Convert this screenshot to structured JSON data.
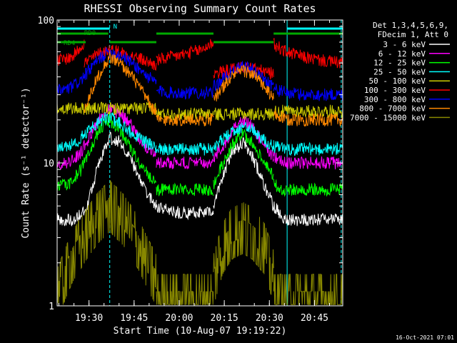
{
  "chart_data": {
    "type": "line",
    "title": "RHESSI Observing Summary Count Rates",
    "xlabel": "Start Time (10-Aug-07 19:19:22)",
    "ylabel": "Count Rate (s⁻¹ detector⁻¹)",
    "y_scale": "log",
    "ylim": [
      1,
      100
    ],
    "xlim_minutes": [
      0,
      95
    ],
    "x_ticks": [
      {
        "minute": 10.6,
        "label": "19:30"
      },
      {
        "minute": 25.6,
        "label": "19:45"
      },
      {
        "minute": 40.6,
        "label": "20:00"
      },
      {
        "minute": 55.6,
        "label": "20:15"
      },
      {
        "minute": 70.6,
        "label": "20:30"
      },
      {
        "minute": 85.6,
        "label": "20:45"
      }
    ],
    "y_ticks": [
      {
        "value": 1,
        "label": "1"
      },
      {
        "value": 10,
        "label": "10"
      },
      {
        "value": 100,
        "label": "100"
      }
    ],
    "legend_header": [
      "Det 1,3,4,5,6,9,",
      "FDecim 1, Att 0"
    ],
    "legend_position": "right",
    "timestamp": "16-Oct-2021 07:01",
    "flags": [
      {
        "label": "N",
        "color": "#00ffff",
        "segments": [
          [
            0,
            17.5
          ],
          [
            76.5,
            95
          ]
        ],
        "y": 40
      },
      {
        "label": "RD0",
        "color": "#00aa00",
        "segments": [
          [
            0,
            17
          ],
          [
            33,
            52
          ],
          [
            72,
            95
          ]
        ],
        "y": 47
      },
      {
        "label": "RD4",
        "color": "#00aa00",
        "segments": [
          [
            0,
            9.5
          ],
          [
            17.5,
            33
          ],
          [
            52,
            72
          ]
        ],
        "y": 59
      }
    ],
    "vertical_lines": [
      {
        "minute": 0,
        "color": "#00ffff",
        "style": "solid"
      },
      {
        "minute": 17.5,
        "color": "#00ffff",
        "style": "dashed"
      },
      {
        "minute": 76.5,
        "color": "#00ffff",
        "style": "solid"
      },
      {
        "minute": 94.5,
        "color": "#00ffff",
        "style": "dashed"
      }
    ],
    "series": [
      {
        "name": "3 - 6 keV",
        "color": "#ffffff",
        "segments": [
          {
            "x": [
              0,
              6,
              10,
              14,
              17.5,
              21,
              25,
              30,
              33
            ],
            "y": [
              4,
              4,
              5,
              10,
              15,
              14,
              10,
              6,
              5
            ]
          },
          {
            "x": [
              33,
              38,
              43,
              48,
              52
            ],
            "y": [
              5,
              4.5,
              4.5,
              4.5,
              4.5
            ]
          },
          {
            "x": [
              52,
              55,
              58,
              62,
              65,
              69,
              72
            ],
            "y": [
              5,
              8,
              12,
              14,
              11,
              7,
              5
            ]
          },
          {
            "x": [
              72,
              76,
              82,
              88,
              95
            ],
            "y": [
              5,
              4,
              4,
              4,
              4
            ]
          }
        ]
      },
      {
        "name": "6 - 12 keV",
        "color": "#ff00ff",
        "segments": [
          {
            "x": [
              0,
              4,
              8,
              12,
              15,
              17.5,
              21,
              25,
              29,
              33
            ],
            "y": [
              10,
              10,
              12,
              17,
              22,
              24,
              22,
              18,
              13,
              11
            ]
          },
          {
            "x": [
              33,
              38,
              43,
              48,
              52
            ],
            "y": [
              10,
              10,
              10,
              10,
              10
            ]
          },
          {
            "x": [
              52,
              56,
              59,
              62,
              65,
              68,
              72
            ],
            "y": [
              11,
              14,
              18,
              20,
              18,
              14,
              11
            ]
          },
          {
            "x": [
              72,
              76,
              82,
              88,
              95
            ],
            "y": [
              11,
              10,
              10,
              10,
              10
            ]
          }
        ]
      },
      {
        "name": "12 - 25 keV",
        "color": "#00ff00",
        "segments": [
          {
            "x": [
              0,
              4,
              8,
              12,
              15,
              17.5,
              21,
              25,
              29,
              33
            ],
            "y": [
              7,
              7,
              9,
              14,
              18,
              20,
              17,
              12,
              9,
              7
            ]
          },
          {
            "x": [
              33,
              38,
              43,
              48,
              52
            ],
            "y": [
              6.5,
              6.5,
              6.5,
              6.5,
              6.5
            ]
          },
          {
            "x": [
              52,
              56,
              59,
              62,
              65,
              68,
              72
            ],
            "y": [
              7,
              11,
              14,
              16,
              14,
              11,
              8
            ]
          },
          {
            "x": [
              72,
              76,
              82,
              88,
              95
            ],
            "y": [
              7,
              6.5,
              6.5,
              6.5,
              6.5
            ]
          }
        ]
      },
      {
        "name": "25 - 50 keV",
        "color": "#00ffff",
        "segments": [
          {
            "x": [
              0,
              4,
              8,
              12,
              15,
              17.5,
              21,
              25,
              29,
              33
            ],
            "y": [
              13,
              13,
              15,
              18,
              20,
              21,
              19,
              16,
              14,
              13
            ]
          },
          {
            "x": [
              33,
              38,
              43,
              48,
              52
            ],
            "y": [
              12.5,
              12.5,
              12.5,
              12.5,
              12.5
            ]
          },
          {
            "x": [
              52,
              56,
              59,
              62,
              65,
              68,
              72
            ],
            "y": [
              13,
              15,
              17,
              18,
              17,
              15,
              13
            ]
          },
          {
            "x": [
              72,
              76,
              82,
              88,
              95
            ],
            "y": [
              13,
              12.5,
              12.5,
              12.5,
              12.5
            ]
          }
        ]
      },
      {
        "name": "50 - 100 keV",
        "color": "#cccc00",
        "segments": [
          {
            "x": [
              0,
              4,
              8,
              12,
              15,
              17.5,
              21,
              25,
              29,
              33
            ],
            "y": [
              24,
              24,
              24,
              24,
              24,
              24,
              24,
              24,
              24,
              24
            ]
          },
          {
            "x": [
              33,
              38,
              43,
              48,
              52
            ],
            "y": [
              22,
              22,
              22,
              22,
              22
            ]
          },
          {
            "x": [
              52,
              56,
              59,
              62,
              65,
              68,
              72
            ],
            "y": [
              22,
              22,
              22,
              22,
              22,
              22,
              22
            ]
          },
          {
            "x": [
              72,
              76,
              82,
              88,
              95
            ],
            "y": [
              23,
              23,
              23,
              23,
              23
            ]
          }
        ]
      },
      {
        "name": "100 - 300 keV",
        "color": "#ff0000",
        "segments": [
          {
            "x": [
              0,
              5,
              9
            ],
            "y": [
              52,
              55,
              70
            ]
          },
          {
            "x": [
              9,
              12,
              15,
              17.5,
              21,
              25,
              29,
              33
            ],
            "y": [
              50,
              55,
              60,
              62,
              60,
              56,
              52,
              48
            ]
          },
          {
            "x": [
              33,
              38,
              43,
              48,
              52
            ],
            "y": [
              52,
              55,
              58,
              62,
              70
            ]
          },
          {
            "x": [
              52,
              56,
              59,
              62,
              65,
              68,
              72
            ],
            "y": [
              42,
              44,
              46,
              47,
              46,
              44,
              42
            ]
          },
          {
            "x": [
              72,
              76,
              82,
              88,
              95
            ],
            "y": [
              68,
              60,
              55,
              52,
              50
            ]
          }
        ]
      },
      {
        "name": "300 - 800 keV",
        "color": "#0000ff",
        "segments": [
          {
            "x": [
              0,
              4,
              8,
              12,
              15,
              17.5,
              21,
              25,
              29,
              33
            ],
            "y": [
              32,
              33,
              38,
              48,
              56,
              60,
              57,
              50,
              42,
              36
            ]
          },
          {
            "x": [
              33,
              38,
              43,
              48,
              52
            ],
            "y": [
              32,
              31,
              31,
              31,
              31
            ]
          },
          {
            "x": [
              52,
              56,
              59,
              62,
              65,
              68,
              72
            ],
            "y": [
              34,
              40,
              45,
              47,
              45,
              40,
              35
            ]
          },
          {
            "x": [
              72,
              76,
              82,
              88,
              95
            ],
            "y": [
              33,
              31,
              30,
              30,
              30
            ]
          }
        ]
      },
      {
        "name": "800 - 7000 keV",
        "color": "#ff8800",
        "segments": [
          {
            "x": [
              9,
              12,
              15,
              17.5,
              21,
              25,
              29,
              33
            ],
            "y": [
              24,
              34,
              46,
              55,
              50,
              40,
              30,
              22
            ]
          },
          {
            "x": [
              33,
              38,
              43,
              48,
              52
            ],
            "y": [
              20,
              20,
              20,
              20,
              20
            ]
          },
          {
            "x": [
              52,
              56,
              59,
              62,
              65,
              68,
              72
            ],
            "y": [
              28,
              36,
              42,
              44,
              42,
              36,
              28
            ]
          },
          {
            "x": [
              72,
              76,
              82,
              88,
              95
            ],
            "y": [
              22,
              20,
              20,
              20,
              20
            ]
          }
        ]
      },
      {
        "name": "7000 - 15000 keV",
        "color": "#888800",
        "segments": [
          {
            "x": [
              0,
              5,
              9,
              13,
              17.5,
              22,
              26,
              30,
              33
            ],
            "y": [
              1.2,
              2.2,
              3,
              4,
              5,
              4,
              3,
              2,
              1.5
            ]
          },
          {
            "x": [
              33,
              38,
              43,
              48,
              52
            ],
            "y": [
              1.1,
              1.1,
              1.1,
              1.1,
              1.1
            ]
          },
          {
            "x": [
              52,
              55,
              58,
              62,
              65,
              69,
              72
            ],
            "y": [
              1.5,
              2.5,
              3.2,
              3.5,
              3.2,
              2.5,
              1.6
            ]
          },
          {
            "x": [
              72,
              76,
              82,
              88,
              95
            ],
            "y": [
              1.1,
              1.1,
              1.1,
              1.1,
              1.1
            ]
          }
        ]
      }
    ]
  }
}
